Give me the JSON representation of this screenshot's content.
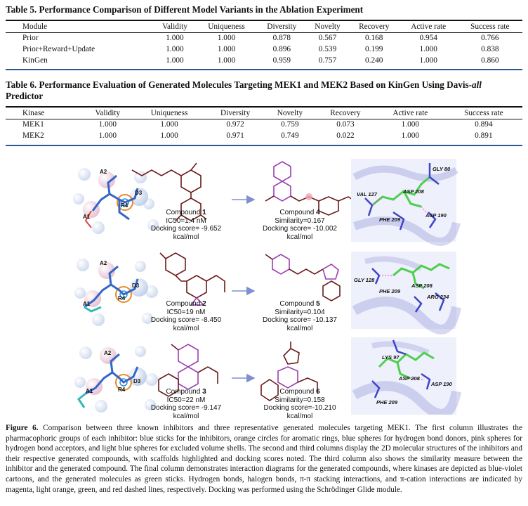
{
  "table5": {
    "caption": "Table 5. Performance Comparison of Different Model Variants in the Ablation Experiment",
    "headers": [
      "Module",
      "Validity",
      "Uniqueness",
      "Diversity",
      "Novelty",
      "Recovery",
      "Active rate",
      "Success rate"
    ],
    "rows": [
      [
        "Prior",
        "1.000",
        "1.000",
        "0.878",
        "0.567",
        "0.168",
        "0.954",
        "0.766"
      ],
      [
        "Prior+Reward+Update",
        "1.000",
        "1.000",
        "0.896",
        "0.539",
        "0.199",
        "1.000",
        "0.838"
      ],
      [
        "KinGen",
        "1.000",
        "1.000",
        "0.959",
        "0.757",
        "0.240",
        "1.000",
        "0.860"
      ]
    ]
  },
  "table6": {
    "caption_line1": "Table 6. Performance Evaluation of Generated Molecules Targeting MEK1 and MEK2 Based on KinGen Using Davis-",
    "caption_italic": "all",
    "caption_line2": "Predictor",
    "headers": [
      "Kinase",
      "Validity",
      "Uniqueness",
      "Diversity",
      "Novelty",
      "Recovery",
      "Active rate",
      "Success rate"
    ],
    "rows": [
      [
        "MEK1",
        "1.000",
        "1.000",
        "0.972",
        "0.759",
        "0.073",
        "1.000",
        "0.894"
      ],
      [
        "MEK2",
        "1.000",
        "1.000",
        "0.971",
        "0.749",
        "0.022",
        "1.000",
        "0.891"
      ]
    ]
  },
  "figure": {
    "pharmacophore_labels": [
      "A2",
      "D3",
      "R4",
      "A1"
    ],
    "rows": [
      {
        "inhibitor_name": "Compound ",
        "inhibitor_num": "1",
        "inhibitor_ic50": "IC50=1.4 nM",
        "inhibitor_dock": "Docking score= -9.652 kcal/mol",
        "generated_name": "Compound ",
        "generated_num": "4",
        "similarity": "Similarity=0.167",
        "generated_dock": "Docking score= -10.002 kcal/mol",
        "residues": [
          "GLY 80",
          "VAL 127",
          "ASP 208",
          "PHE 209",
          "ASP 190"
        ]
      },
      {
        "inhibitor_name": "Compound ",
        "inhibitor_num": "2",
        "inhibitor_ic50": "IC50=19 nM",
        "inhibitor_dock": "Docking score= -8.450 kcal/mol",
        "generated_name": "Compound ",
        "generated_num": "5",
        "similarity": "Similarity=0.104",
        "generated_dock": "Docking score= -10.137 kcal/mol",
        "residues": [
          "GLY 128",
          "PHE 209",
          "ASP 208",
          "ARG 234"
        ]
      },
      {
        "inhibitor_name": "Compound ",
        "inhibitor_num": "3",
        "inhibitor_ic50": "IC50=22 nM",
        "inhibitor_dock": "Docking score= -9.147 kcal/mol",
        "generated_name": "Compound ",
        "generated_num": "6",
        "similarity": "Similarity=0.158",
        "generated_dock": "Docking score=-10.210 kcal/mol",
        "residues": [
          "LYS 97",
          "ASP 208",
          "ASP 190",
          "PHE 209"
        ]
      }
    ]
  },
  "caption": {
    "label": "Figure 6.",
    "text": " Comparison between three known inhibitors and three representative generated molecules targeting MEK1. The first column illustrates the pharmacophoric groups of each inhibitor: blue sticks for the inhibitors, orange circles for aromatic rings, blue spheres for hydrogen bond donors, pink spheres for hydrogen bond acceptors, and light blue spheres for excluded volume shells. The second and third columns display the 2D molecular structures of the inhibitors and their respective generated compounds, with scaffolds highlighted and docking scores noted. The third column also shows the similarity measure between the inhibitor and the generated compound. The final column demonstrates interaction diagrams for the generated compounds, where kinases are depicted as blue-violet cartoons, and the generated molecules as green sticks. Hydrogen bonds, halogen bonds, π-π stacking interactions, and π-cation interactions are indicated by magenta, light orange, green, and red dashed lines, respectively. Docking was performed using the Schrödinger Glide module."
  },
  "colors": {
    "rule_blue": "#2b5797",
    "mol_dark": "#6b1a1a",
    "highlight": "#9b3fb0",
    "arrow": "#7f8fd0",
    "protein": "#6a6fd0",
    "ligand": "#4fcf4f"
  }
}
